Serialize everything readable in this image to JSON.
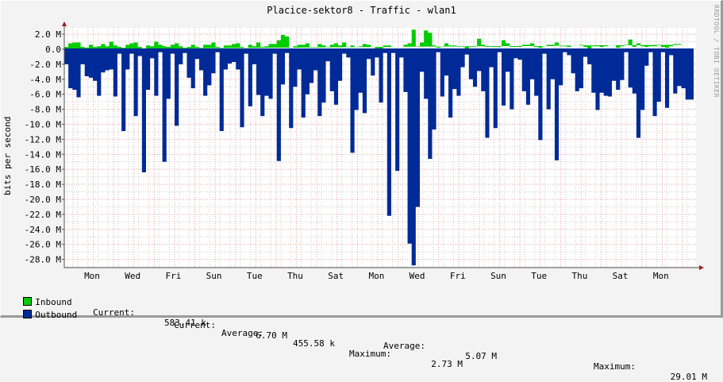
{
  "title": "Placice-sektor8 - Traffic - wlan1",
  "watermark": "RRDTOOL / TOBI OETIKER",
  "colors": {
    "inbound": "#00cc00",
    "outbound": "#002a97",
    "grid_major": "#e8a0a0",
    "grid_minor": "#cccccc",
    "axis": "#555555",
    "arrow": "#9c1f1f"
  },
  "legend": {
    "inbound": {
      "label": "Inbound",
      "current_label": "Current:",
      "current": "583.41 k",
      "average_label": "Average:",
      "average": "455.58 k",
      "maximum_label": "Maximum:",
      "maximum": "2.73 M"
    },
    "outbound": {
      "label": "Outbound",
      "current_label": "Current:",
      "current": "6.70 M",
      "average_label": "Average:",
      "average": "5.07 M",
      "maximum_label": "Maximum:",
      "maximum": "29.01 M"
    }
  },
  "chart_data": {
    "type": "area",
    "title": "Placice-sektor8 - Traffic - wlan1",
    "xlabel": "",
    "ylabel": "bits per second",
    "ylim": [
      -29.5,
      2.9
    ],
    "y_ticks": [
      "2.0 M",
      "0.0",
      "-2.0 M",
      "-4.0 M",
      "-6.0 M",
      "-8.0 M",
      "-10.0 M",
      "-12.0 M",
      "-14.0 M",
      "-16.0 M",
      "-18.0 M",
      "-20.0 M",
      "-22.0 M",
      "-24.0 M",
      "-26.0 M",
      "-28.0 M"
    ],
    "x_ticks": [
      "Mon",
      "Wed",
      "Fri",
      "Sun",
      "Tue",
      "Thu",
      "Sat",
      "Mon",
      "Wed",
      "Fri",
      "Sun",
      "Tue",
      "Thu",
      "Sat",
      "Mon"
    ],
    "grid": true,
    "legend_position": "bottom",
    "series": [
      {
        "name": "Inbound",
        "unit": "M bits/s",
        "values": [
          0.3,
          0.8,
          0.9,
          0.9,
          0.3,
          0.2,
          0.6,
          0.3,
          0.4,
          0.7,
          0.4,
          1.0,
          0.5,
          0.3,
          0.2,
          0.6,
          0.8,
          0.9,
          0.3,
          0.1,
          0.5,
          0.4,
          1.0,
          0.6,
          0.4,
          0.3,
          0.6,
          0.8,
          0.4,
          0.2,
          0.3,
          0.6,
          0.3,
          0.2,
          0.6,
          0.6,
          0.9,
          0.3,
          0.2,
          0.5,
          0.5,
          0.7,
          0.8,
          0.3,
          0.2,
          0.6,
          0.4,
          0.9,
          0.3,
          0.4,
          0.7,
          0.7,
          1.2,
          1.9,
          1.7,
          0.2,
          0.4,
          0.6,
          0.6,
          0.8,
          0.3,
          0.3,
          0.7,
          0.5,
          0.3,
          0.6,
          0.8,
          0.5,
          0.9,
          0.3,
          0.5,
          0.3,
          0.4,
          0.7,
          0.6,
          0.3,
          0.1,
          0.1,
          0.5,
          0.5,
          0.3,
          0.3,
          0.3,
          0.6,
          0.8,
          2.6,
          0.4,
          0.9,
          2.5,
          2.2,
          0.5,
          0.2,
          0.3,
          0.8,
          0.5,
          0.5,
          0.3,
          0.3,
          0.1,
          0.3,
          0.3,
          1.4,
          0.6,
          0.3,
          0.3,
          0.3,
          0.3,
          1.2,
          0.8,
          0.3,
          0.3,
          0.3,
          0.6,
          0.6,
          0.8,
          0.3,
          0.2,
          0.4,
          0.6,
          0.6,
          0.9,
          0.4,
          0.4,
          0.3,
          0.5,
          0.5,
          0.6,
          0.3,
          0.1,
          0.4,
          0.4,
          0.3,
          0.4,
          0.5,
          0.5,
          0.2,
          0.4,
          0.6,
          1.3,
          0.3,
          0.8,
          0.4,
          0.3,
          0.4,
          0.4,
          0.6,
          0.3,
          0.2,
          0.4,
          0.7,
          0.7,
          0.6
        ]
      },
      {
        "name": "Outbound",
        "unit": "M bits/s",
        "values": [
          -2.0,
          -5.2,
          -5.4,
          -6.4,
          -2.0,
          -3.6,
          -3.8,
          -4.2,
          -6.2,
          -3.1,
          -2.8,
          -2.7,
          -6.3,
          -0.6,
          -10.9,
          -2.7,
          -0.6,
          -8.9,
          -0.9,
          -16.4,
          -5.4,
          -1.2,
          -6.2,
          -0.4,
          -15.0,
          -6.6,
          -0.6,
          -10.2,
          -2.0,
          -0.5,
          -3.8,
          -5.2,
          -1.3,
          -2.8,
          -6.2,
          -4.8,
          -3.2,
          -0.4,
          -10.9,
          -2.7,
          -1.9,
          -1.7,
          -2.7,
          -10.4,
          -0.6,
          -7.6,
          -2.0,
          -6.1,
          -8.9,
          -6.2,
          -6.6,
          -0.6,
          -14.9,
          -4.7,
          -0.5,
          -10.5,
          -5.0,
          -2.7,
          -9.1,
          -6.0,
          -4.5,
          -2.8,
          -8.9,
          -7.1,
          -1.6,
          -5.6,
          -7.4,
          -4.2,
          -0.6,
          -1.1,
          -13.8,
          -8.1,
          -5.8,
          -8.5,
          -1.3,
          -3.5,
          -1.1,
          -7.1,
          -0.5,
          -22.2,
          -0.5,
          -16.2,
          -1.1,
          -5.7,
          -25.9,
          -28.8,
          -21.0,
          -3.0,
          -6.6,
          -14.6,
          -10.7,
          -0.4,
          -6.3,
          -3.5,
          -9.1,
          -5.3,
          -6.2,
          -2.4,
          -0.7,
          -4.0,
          -5.0,
          -2.9,
          -5.6,
          -11.8,
          -2.4,
          -10.5,
          -0.4,
          -7.5,
          -3.0,
          -8.0,
          -1.2,
          -1.4,
          -5.6,
          -7.4,
          -4.0,
          -6.2,
          -12.1,
          -0.6,
          -8.0,
          -4.0,
          -14.8,
          -4.8,
          -0.4,
          -0.8,
          -3.2,
          -5.6,
          -5.2,
          -1.0,
          -2.0,
          -5.8,
          -8.1,
          -5.8,
          -6.2,
          -6.3,
          -4.2,
          -5.4,
          -4.1,
          -0.4,
          -5.1,
          -5.9,
          -11.8,
          -8.1,
          -2.2,
          -0.4,
          -8.9,
          -7.0,
          -0.4,
          -7.8,
          -0.8,
          -5.9,
          -4.9,
          -5.2,
          -6.7,
          -6.7
        ]
      }
    ]
  }
}
